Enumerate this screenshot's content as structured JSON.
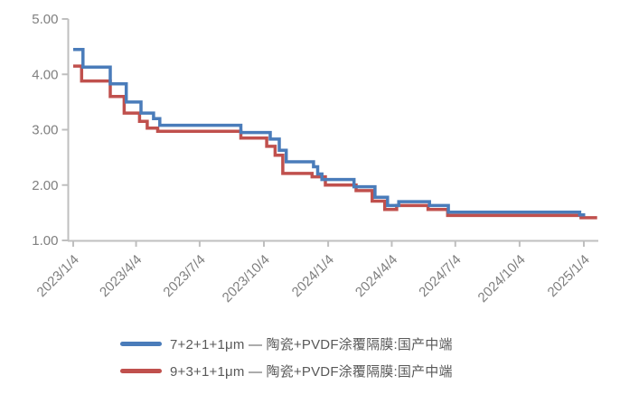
{
  "chart_data": {
    "type": "line",
    "subtype": "step-after",
    "title": "",
    "xlabel": "",
    "ylabel": "",
    "grid": false,
    "legend_position": "bottom",
    "x_axis": {
      "tick_labels": [
        "2023/1/4",
        "2023/4/4",
        "2023/7/4",
        "2023/10/4",
        "2024/1/4",
        "2024/4/4",
        "2024/7/4",
        "2024/10/4",
        "2025/1/4"
      ],
      "tick_dates": [
        "2023-01-04",
        "2023-04-04",
        "2023-07-04",
        "2023-10-04",
        "2024-01-04",
        "2024-04-04",
        "2024-07-04",
        "2024-10-04",
        "2025-01-04"
      ],
      "domain": [
        "2023-01-04",
        "2025-01-04"
      ]
    },
    "y_axis": {
      "tick_labels": [
        "5.00",
        "4.00",
        "3.00",
        "2.00",
        "1.00"
      ],
      "tick_values": [
        5,
        4,
        3,
        2,
        1
      ],
      "ylim": [
        1,
        5
      ]
    },
    "series": [
      {
        "name": "7+2+1+1μm — 陶瓷+PVDF涂覆隔膜:国产中端",
        "color": "#4A7CBA",
        "end": "2025-01-06",
        "points": [
          [
            "2023-01-04",
            4.45
          ],
          [
            "2023-01-18",
            4.13
          ],
          [
            "2023-02-26",
            3.83
          ],
          [
            "2023-03-21",
            3.5
          ],
          [
            "2023-04-11",
            3.3
          ],
          [
            "2023-04-29",
            3.2
          ],
          [
            "2023-05-08",
            3.08
          ],
          [
            "2023-09-01",
            2.95
          ],
          [
            "2023-10-13",
            2.83
          ],
          [
            "2023-10-26",
            2.63
          ],
          [
            "2023-11-05",
            2.42
          ],
          [
            "2023-12-14",
            2.33
          ],
          [
            "2023-12-20",
            2.2
          ],
          [
            "2023-12-26",
            2.1
          ],
          [
            "2024-02-10",
            1.97
          ],
          [
            "2024-03-11",
            1.78
          ],
          [
            "2024-03-29",
            1.63
          ],
          [
            "2024-04-14",
            1.7
          ],
          [
            "2024-05-28",
            1.63
          ],
          [
            "2024-06-24",
            1.51
          ],
          [
            "2024-12-29",
            1.46
          ]
        ]
      },
      {
        "name": "9+3+1+1μm — 陶瓷+PVDF涂覆隔膜:国产中端",
        "color": "#C0504D",
        "end": "2025-01-23",
        "points": [
          [
            "2023-01-04",
            4.15
          ],
          [
            "2023-01-16",
            3.88
          ],
          [
            "2023-02-26",
            3.6
          ],
          [
            "2023-03-18",
            3.3
          ],
          [
            "2023-04-09",
            3.15
          ],
          [
            "2023-04-20",
            3.03
          ],
          [
            "2023-05-05",
            2.97
          ],
          [
            "2023-09-01",
            2.85
          ],
          [
            "2023-10-08",
            2.7
          ],
          [
            "2023-10-20",
            2.54
          ],
          [
            "2023-10-31",
            2.21
          ],
          [
            "2023-12-12",
            2.15
          ],
          [
            "2023-12-31",
            2.0
          ],
          [
            "2024-02-13",
            1.9
          ],
          [
            "2024-03-07",
            1.71
          ],
          [
            "2024-03-25",
            1.56
          ],
          [
            "2024-04-11",
            1.63
          ],
          [
            "2024-05-26",
            1.56
          ],
          [
            "2024-06-23",
            1.45
          ],
          [
            "2024-12-31",
            1.41
          ]
        ]
      }
    ]
  },
  "colors": {
    "background": "#ffffff",
    "axis_line": "#BFBFBF",
    "tick_label": "#7F7F7F",
    "legend_text": "#595959"
  }
}
